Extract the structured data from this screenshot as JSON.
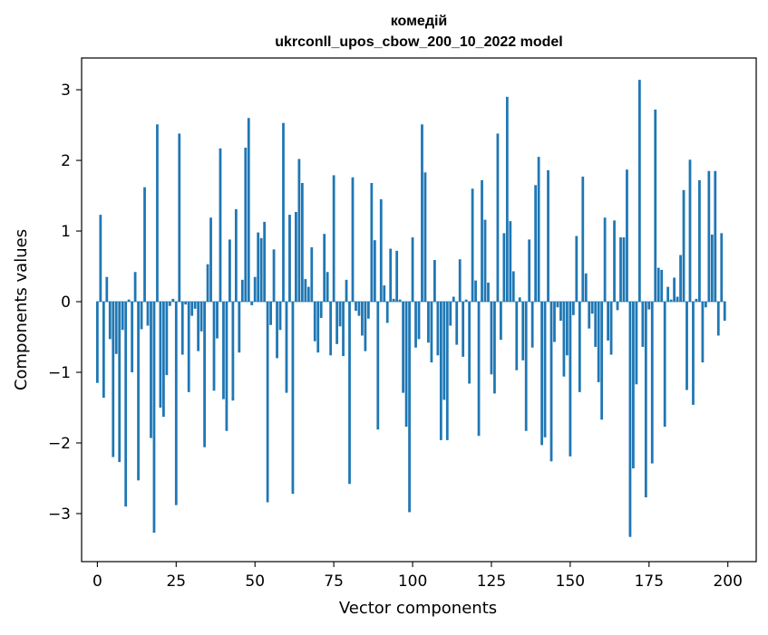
{
  "chart_data": {
    "type": "bar",
    "title": "комедій",
    "subtitle": "ukrconll_upos_cbow_200_10_2022 model",
    "xlabel": "Vector components",
    "ylabel": "Components values",
    "xlim": [
      -5,
      209
    ],
    "ylim": [
      -3.68,
      3.45
    ],
    "xticks": [
      0,
      25,
      50,
      75,
      100,
      125,
      150,
      175,
      200
    ],
    "yticks": [
      -3,
      -2,
      -1,
      0,
      1,
      2,
      3
    ],
    "ytick_labels": [
      "−3",
      "−2",
      "−1",
      "0",
      "1",
      "2",
      "3"
    ],
    "grid": false,
    "bar_color": "#1f77b4",
    "x": [
      0,
      1,
      2,
      3,
      4,
      5,
      6,
      7,
      8,
      9,
      10,
      11,
      12,
      13,
      14,
      15,
      16,
      17,
      18,
      19,
      20,
      21,
      22,
      23,
      24,
      25,
      26,
      27,
      28,
      29,
      30,
      31,
      32,
      33,
      34,
      35,
      36,
      37,
      38,
      39,
      40,
      41,
      42,
      43,
      44,
      45,
      46,
      47,
      48,
      49,
      50,
      51,
      52,
      53,
      54,
      55,
      56,
      57,
      58,
      59,
      60,
      61,
      62,
      63,
      64,
      65,
      66,
      67,
      68,
      69,
      70,
      71,
      72,
      73,
      74,
      75,
      76,
      77,
      78,
      79,
      80,
      81,
      82,
      83,
      84,
      85,
      86,
      87,
      88,
      89,
      90,
      91,
      92,
      93,
      94,
      95,
      96,
      97,
      98,
      99,
      100,
      101,
      102,
      103,
      104,
      105,
      106,
      107,
      108,
      109,
      110,
      111,
      112,
      113,
      114,
      115,
      116,
      117,
      118,
      119,
      120,
      121,
      122,
      123,
      124,
      125,
      126,
      127,
      128,
      129,
      130,
      131,
      132,
      133,
      134,
      135,
      136,
      137,
      138,
      139,
      140,
      141,
      142,
      143,
      144,
      145,
      146,
      147,
      148,
      149,
      150,
      151,
      152,
      153,
      154,
      155,
      156,
      157,
      158,
      159,
      160,
      161,
      162,
      163,
      164,
      165,
      166,
      167,
      168,
      169,
      170,
      171,
      172,
      173,
      174,
      175,
      176,
      177,
      178,
      179,
      180,
      181,
      182,
      183,
      184,
      185,
      186,
      187,
      188,
      189,
      190,
      191,
      192,
      193,
      194,
      195,
      196,
      197,
      198,
      199
    ],
    "values": [
      -1.15,
      1.23,
      -1.36,
      0.35,
      -0.53,
      -2.2,
      -0.74,
      -2.27,
      -0.4,
      -2.9,
      0.03,
      -1.0,
      0.42,
      -2.53,
      -0.39,
      1.62,
      -0.34,
      -1.93,
      -3.27,
      2.51,
      -1.5,
      -1.63,
      -1.04,
      -0.06,
      0.04,
      -2.88,
      2.38,
      -0.75,
      -0.04,
      -1.28,
      -0.2,
      -0.1,
      -0.7,
      -0.42,
      -2.06,
      0.53,
      1.19,
      -1.26,
      -0.52,
      2.17,
      -1.38,
      -1.83,
      0.88,
      -1.4,
      1.31,
      -0.72,
      0.31,
      2.18,
      2.6,
      -0.05,
      0.35,
      0.98,
      0.9,
      1.13,
      -2.84,
      -0.33,
      0.74,
      -0.8,
      -0.4,
      2.53,
      -1.29,
      1.23,
      -2.72,
      1.27,
      2.02,
      1.68,
      0.32,
      0.21,
      0.77,
      -0.56,
      -0.72,
      -0.23,
      0.96,
      0.42,
      -0.76,
      1.79,
      -0.6,
      -0.35,
      -0.77,
      0.31,
      -2.58,
      1.76,
      -0.13,
      -0.2,
      -0.48,
      -0.7,
      -0.24,
      1.68,
      0.87,
      -1.81,
      1.45,
      0.23,
      -0.3,
      0.75,
      0.04,
      0.72,
      0.03,
      -1.29,
      -1.77,
      -2.98,
      0.91,
      -0.65,
      -0.53,
      2.51,
      1.83,
      -0.58,
      -0.86,
      0.59,
      -0.76,
      -1.96,
      -1.39,
      -1.96,
      -0.34,
      0.07,
      -0.61,
      0.6,
      -0.78,
      0.03,
      -1.16,
      1.6,
      0.3,
      -1.9,
      1.72,
      1.16,
      0.27,
      -1.03,
      -1.3,
      2.38,
      -0.54,
      0.97,
      2.9,
      1.14,
      0.43,
      -0.97,
      0.06,
      -0.83,
      -1.83,
      0.88,
      -0.65,
      1.65,
      2.05,
      -2.03,
      -1.92,
      1.86,
      -2.26,
      -0.57,
      -0.08,
      -0.27,
      -1.06,
      -0.76,
      -2.19,
      -0.19,
      0.93,
      -1.28,
      1.77,
      0.4,
      -0.38,
      -0.17,
      -0.64,
      -1.14,
      -1.67,
      1.19,
      -0.55,
      -0.75,
      1.15,
      -0.12,
      0.91,
      0.91,
      1.87,
      -3.33,
      -2.36,
      -1.17,
      3.14,
      -0.64,
      -2.77,
      -0.11,
      -2.29,
      2.72,
      0.48,
      0.45,
      -1.77,
      0.21,
      0.03,
      0.34,
      0.07,
      0.66,
      1.58,
      -1.25,
      2.01,
      -1.46,
      0.04,
      1.72,
      -0.86,
      -0.08,
      1.85,
      0.95,
      1.85,
      -0.48,
      0.97,
      -0.27
    ]
  }
}
